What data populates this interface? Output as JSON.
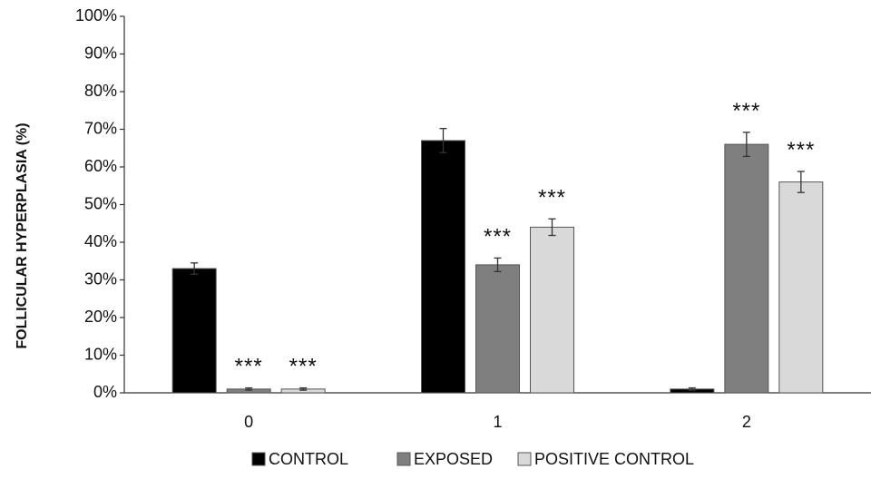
{
  "chart_data": {
    "type": "bar",
    "title": "",
    "xlabel": "",
    "ylabel": "FOLLICULAR HYPERPLASIA (%)",
    "ylim": [
      0,
      100
    ],
    "y_ticks": [
      0,
      10,
      20,
      30,
      40,
      50,
      60,
      70,
      80,
      90,
      100
    ],
    "y_tick_format": "{v}%",
    "categories": [
      "0",
      "1",
      "2"
    ],
    "grid": false,
    "legend_position": "bottom",
    "series": [
      {
        "name": "CONTROL",
        "color": "#000000",
        "values": [
          33,
          67,
          1
        ],
        "errors": [
          1.5,
          3.2,
          0.3
        ],
        "significance": [
          "",
          "",
          ""
        ]
      },
      {
        "name": "EXPOSED",
        "color": "#7f7f7f",
        "values": [
          1,
          34,
          66
        ],
        "errors": [
          0.3,
          1.8,
          3.2
        ],
        "significance": [
          "***",
          "***",
          "***"
        ]
      },
      {
        "name": "POSITIVE CONTROL",
        "color": "#d9d9d9",
        "values": [
          1,
          44,
          56
        ],
        "errors": [
          0.3,
          2.2,
          2.8
        ],
        "significance": [
          "***",
          "***",
          "***"
        ]
      }
    ]
  }
}
